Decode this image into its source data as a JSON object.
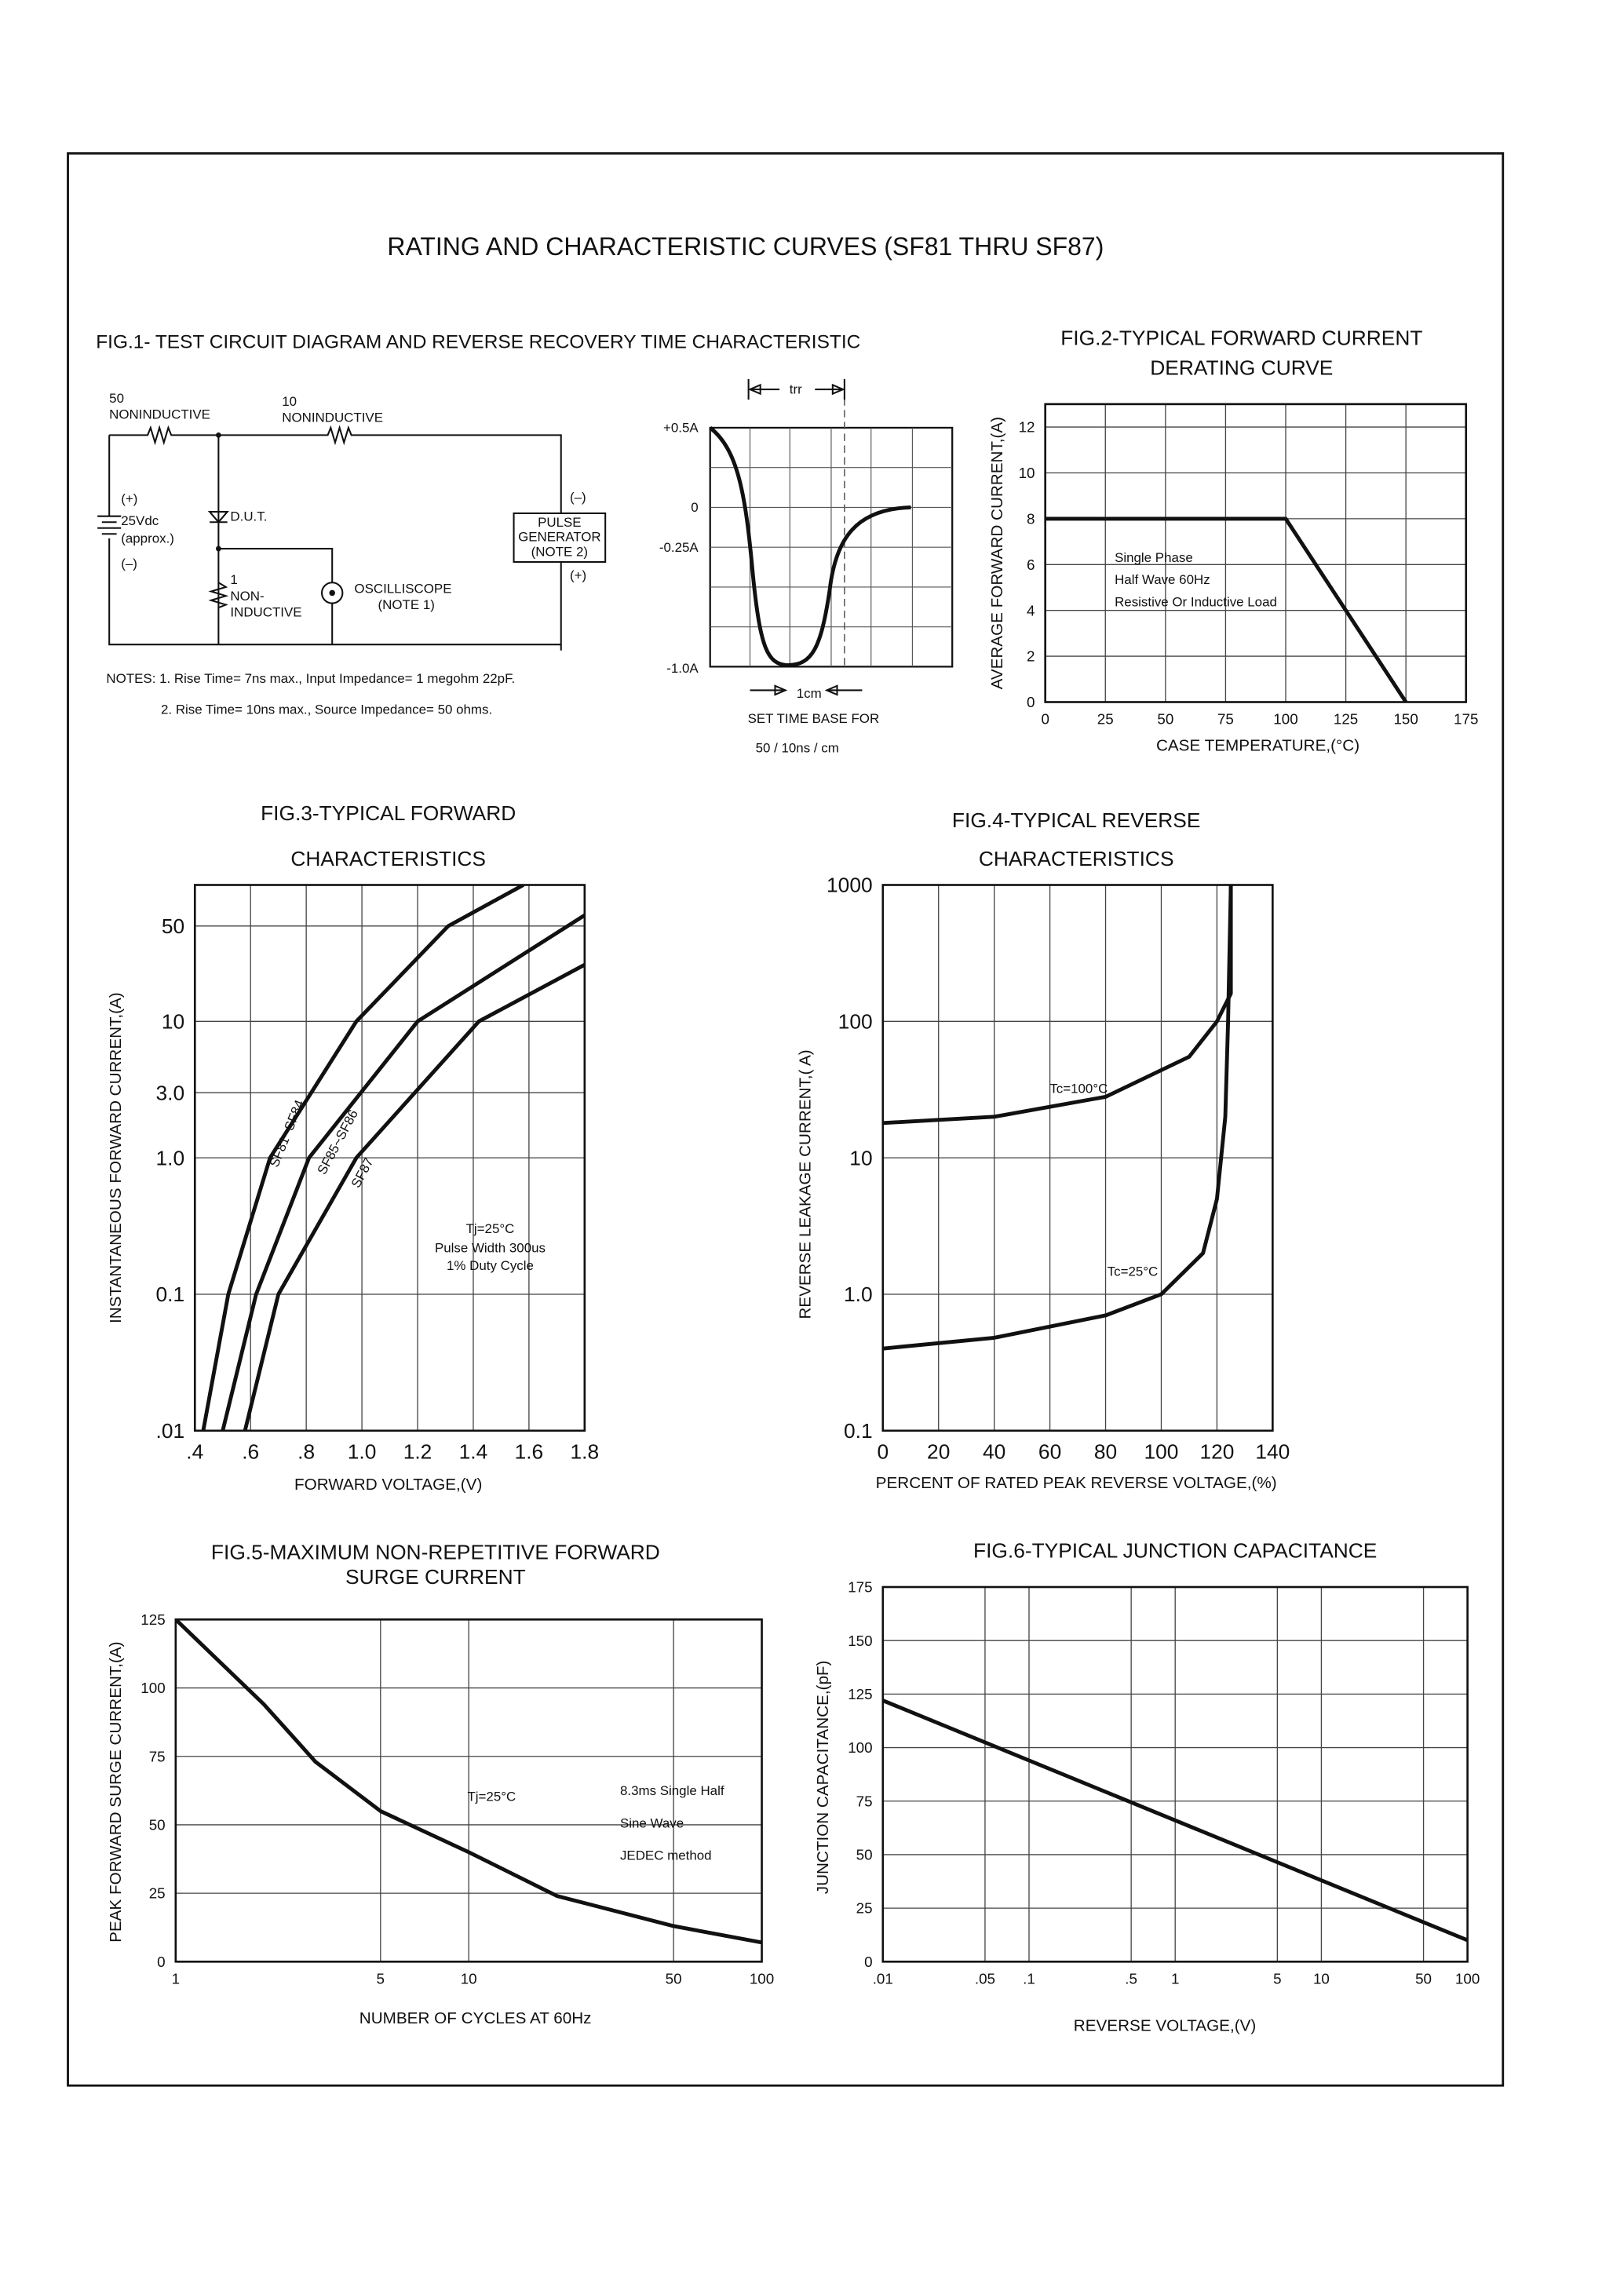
{
  "title": "RATING AND CHARACTERISTIC CURVES (SF81 THRU SF87)",
  "fig1": {
    "title": "FIG.1- TEST CIRCUIT DIAGRAM AND REVERSE RECOVERY TIME CHARACTERISTIC",
    "circuit_labels": [
      "50",
      "NONINDUCTIVE",
      "10",
      "NONINDUCTIVE",
      "(+)",
      "25Vdc",
      "(approx.)",
      "(–)",
      "D.U.T.",
      "1",
      "NON-",
      "INDUCTIVE",
      "OSCILLISCOPE",
      "(NOTE 1)",
      "(–)",
      "PULSE",
      "GENERATOR",
      "(NOTE 2)",
      "(+)"
    ],
    "notes": [
      "NOTES: 1. Rise Time= 7ns max., Input Impedance= 1 megohm 22pF.",
      "2. Rise Time= 10ns max., Source Impedance= 50 ohms."
    ],
    "waveform_labels": [
      "trr",
      "+0.5A",
      "0",
      "-0.25A",
      "-1.0A",
      "1cm",
      "SET TIME BASE FOR",
      "50 / 10ns / cm"
    ]
  },
  "chart_data": [
    {
      "type": "line",
      "title": [
        "FIG.2-TYPICAL FORWARD CURRENT",
        "DERATING CURVE"
      ],
      "x_label": "CASE TEMPERATURE,(°C)",
      "y_label": "AVERAGE FORWARD CURRENT,(A)",
      "xscale": "linear",
      "yscale": "linear",
      "xlim": [
        0,
        175
      ],
      "ylim": [
        0,
        13
      ],
      "xticks": [
        0,
        25,
        50,
        75,
        100,
        125,
        150,
        175
      ],
      "yticks": [
        0,
        2,
        4,
        6,
        8,
        10,
        12
      ],
      "grid": true,
      "annotations": [
        "Single Phase",
        "Half Wave 60Hz",
        "Resistive Or Inductive Load"
      ],
      "series": [
        {
          "color": "#111111",
          "x": [
            0,
            100,
            150
          ],
          "values": [
            8,
            8,
            0
          ]
        }
      ]
    },
    {
      "type": "line",
      "title": [
        "FIG.3-TYPICAL FORWARD",
        "CHARACTERISTICS"
      ],
      "x_label": "FORWARD VOLTAGE,(V)",
      "y_label": "INSTANTANEOUS FORWARD CURRENT,(A)",
      "xscale": "linear",
      "yscale": "log",
      "xlim": [
        0.4,
        1.8
      ],
      "ylim": [
        0.01,
        100
      ],
      "xticks": [
        {
          "value": 0.4,
          "label": ".4"
        },
        {
          "value": 0.6,
          "label": ".6"
        },
        {
          "value": 0.8,
          "label": ".8"
        },
        {
          "value": 1,
          "label": "1.0"
        },
        1.2,
        1.4,
        1.6,
        1.8
      ],
      "yticks": [
        {
          "value": 0.01,
          "label": ".01"
        },
        0.1,
        {
          "value": 1,
          "label": "1.0"
        },
        {
          "value": 3,
          "label": "3.0"
        },
        10,
        50
      ],
      "grid": true,
      "annotations": [
        "Tj=25°C",
        "Pulse Width 300us",
        "1% Duty Cycle"
      ],
      "series": [
        {
          "name": "SF81~SF84",
          "color": "#111111",
          "x": [
            0.43,
            0.52,
            0.67,
            0.98,
            1.31,
            1.58
          ],
          "values": [
            0.01,
            0.1,
            1,
            10,
            50,
            100
          ]
        },
        {
          "name": "SF85~SF86",
          "color": "#111111",
          "x": [
            0.5,
            0.62,
            0.81,
            1.2,
            1.8
          ],
          "values": [
            0.01,
            0.1,
            1,
            10,
            60
          ]
        },
        {
          "name": "SF87",
          "color": "#111111",
          "x": [
            0.58,
            0.7,
            0.98,
            1.42,
            1.8
          ],
          "values": [
            0.01,
            0.1,
            1,
            10,
            26
          ]
        }
      ]
    },
    {
      "type": "line",
      "title": [
        "FIG.4-TYPICAL REVERSE",
        "CHARACTERISTICS"
      ],
      "x_label": "PERCENT OF RATED PEAK REVERSE VOLTAGE,(%)",
      "y_label": "REVERSE LEAKAGE CURRENT,( A)",
      "xscale": "linear",
      "yscale": "log",
      "xlim": [
        0,
        140
      ],
      "ylim": [
        0.1,
        1000
      ],
      "xticks": [
        0,
        20,
        40,
        60,
        80,
        100,
        120,
        140
      ],
      "yticks": [
        0.1,
        {
          "value": 1,
          "label": "1.0"
        },
        10,
        100,
        1000
      ],
      "grid": true,
      "series": [
        {
          "name": "Tc=100°C",
          "color": "#111111",
          "x": [
            0,
            40,
            80,
            110,
            120,
            125,
            125
          ],
          "values": [
            18,
            20,
            28,
            55,
            100,
            160,
            1000
          ]
        },
        {
          "name": "Tc=25°C",
          "color": "#111111",
          "x": [
            0,
            40,
            80,
            100,
            115,
            120,
            123,
            124,
            125
          ],
          "values": [
            0.4,
            0.48,
            0.7,
            1,
            2,
            5,
            20,
            100,
            1000
          ]
        }
      ]
    },
    {
      "type": "line",
      "title": [
        "FIG.5-MAXIMUM NON-REPETITIVE FORWARD",
        "SURGE CURRENT"
      ],
      "x_label": "NUMBER OF CYCLES AT 60Hz",
      "y_label": "PEAK FORWARD SURGE CURRENT,(A)",
      "xscale": "log",
      "yscale": "linear",
      "xlim": [
        1,
        100
      ],
      "ylim": [
        0,
        125
      ],
      "xticks": [
        1,
        5,
        10,
        50,
        100
      ],
      "yticks": [
        0,
        25,
        50,
        75,
        100,
        125
      ],
      "grid": true,
      "annotations": [
        "Tj=25°C",
        "8.3ms Single Half",
        "Sine Wave",
        "JEDEC method"
      ],
      "series": [
        {
          "color": "#111111",
          "x": [
            1,
            2,
            3,
            5,
            10,
            20,
            50,
            100
          ],
          "values": [
            125,
            94,
            73,
            55,
            40,
            24,
            13,
            7
          ]
        }
      ]
    },
    {
      "type": "line",
      "title": [
        "FIG.6-TYPICAL JUNCTION CAPACITANCE"
      ],
      "x_label": "REVERSE VOLTAGE,(V)",
      "y_label": "JUNCTION CAPACITANCE,(pF)",
      "xscale": "log",
      "yscale": "linear",
      "xlim": [
        0.01,
        100
      ],
      "ylim": [
        0,
        175
      ],
      "xticks": [
        {
          "value": 0.01,
          "label": ".01"
        },
        {
          "value": 0.05,
          "label": ".05"
        },
        {
          "value": 0.1,
          "label": ".1"
        },
        {
          "value": 0.5,
          "label": ".5"
        },
        1,
        5,
        10,
        50,
        100
      ],
      "yticks": [
        0,
        25,
        50,
        75,
        100,
        125,
        150,
        175
      ],
      "grid": true,
      "series": [
        {
          "color": "#111111",
          "x": [
            0.01,
            100
          ],
          "values": [
            122,
            10
          ]
        }
      ]
    }
  ]
}
